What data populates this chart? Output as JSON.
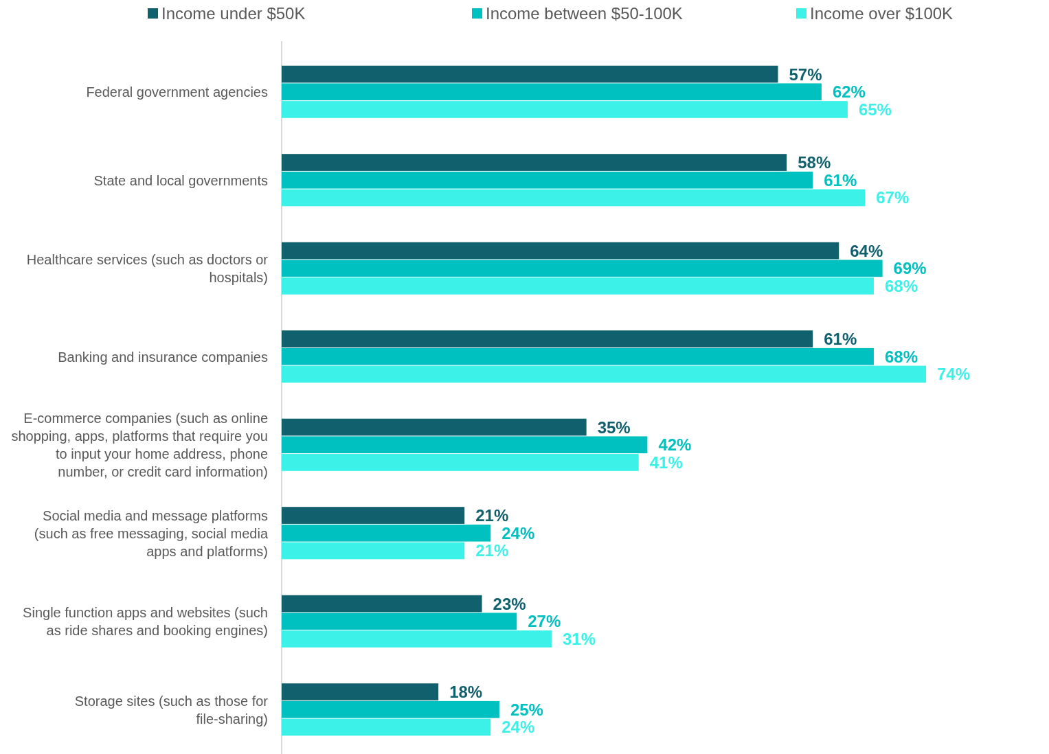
{
  "chart_data": {
    "type": "bar",
    "orientation": "horizontal",
    "legend": "top",
    "categories": [
      "Federal government agencies",
      "State and local governments",
      "Healthcare services (such as doctors or hospitals)",
      "Banking and insurance companies",
      "E-commerce companies (such as online shopping, apps, platforms that require you to input your home address, phone number, or credit card information)",
      "Social media and message platforms (such as free messaging, social media apps and platforms)",
      "Single function apps and websites (such as ride shares and booking engines)",
      "Storage sites (such as those for file-sharing)"
    ],
    "series": [
      {
        "name": "Income under $50K",
        "color": "#11606e",
        "values": [
          57,
          58,
          64,
          61,
          35,
          21,
          23,
          18
        ],
        "value_labels": [
          "57%",
          "58%",
          "64%",
          "61%",
          "35%",
          "21%",
          "23%",
          "18%"
        ]
      },
      {
        "name": "Income between $50-100K",
        "color": "#00c0c0",
        "values": [
          62,
          61,
          69,
          68,
          42,
          24,
          27,
          25
        ],
        "value_labels": [
          "62%",
          "61%",
          "69%",
          "68%",
          "42%",
          "24%",
          "27%",
          "25%"
        ]
      },
      {
        "name": "Income over $100K",
        "color": "#3cf2e8",
        "values": [
          65,
          67,
          68,
          74,
          41,
          21,
          31,
          24
        ],
        "value_labels": [
          "65%",
          "67%",
          "68%",
          "74%",
          "41%",
          "21%",
          "31%",
          "24%"
        ]
      }
    ]
  }
}
